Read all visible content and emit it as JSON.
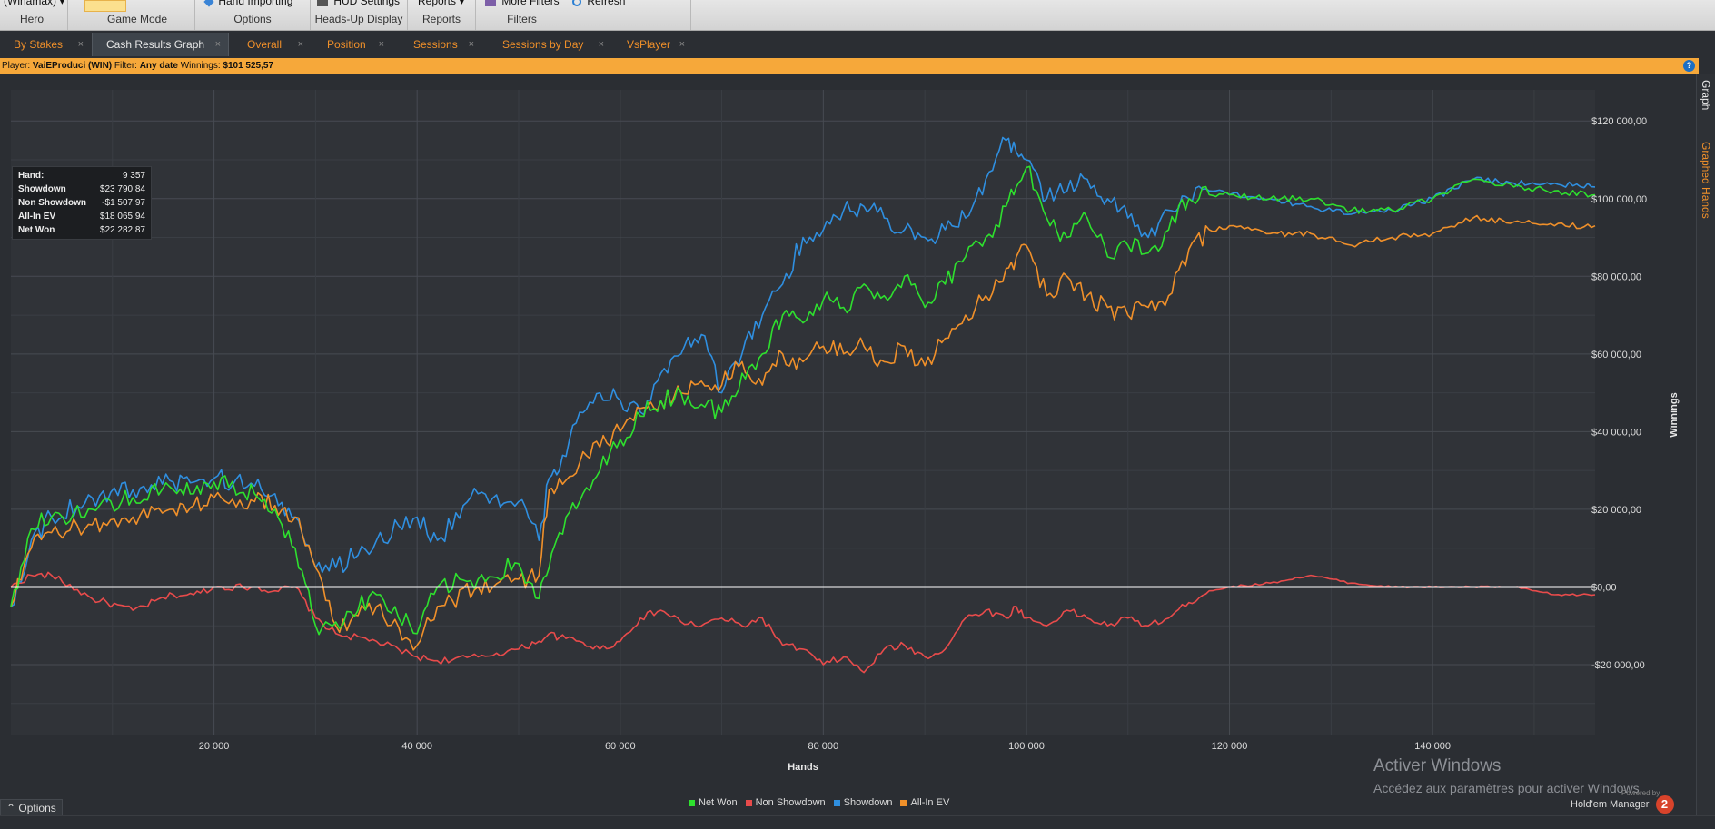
{
  "ribbon": {
    "groups": [
      {
        "button": "(Winamax) ▾",
        "label": "Hero"
      },
      {
        "button": "",
        "label": "Game Mode"
      },
      {
        "button": "Hand Importing",
        "label": "Options"
      },
      {
        "button": "HUD Settings",
        "label": "Heads-Up Display"
      },
      {
        "button": "Reports ▾",
        "label": "Reports"
      },
      {
        "button": "More Filters",
        "label": ""
      },
      {
        "button": "Refresh",
        "label": "Filters"
      }
    ]
  },
  "tabs": [
    {
      "label": "By Stakes",
      "close": "×"
    },
    {
      "label": "Cash Results Graph",
      "close": "×"
    },
    {
      "label": "Overall",
      "close": "×"
    },
    {
      "label": "Position",
      "close": "×"
    },
    {
      "label": "Sessions",
      "close": "×"
    },
    {
      "label": "Sessions by Day",
      "close": "×"
    },
    {
      "label": "VsPlayer",
      "close": "×"
    }
  ],
  "filterbar": {
    "player_label": "Player:",
    "player": "VaiEProduci (WIN)",
    "filter_label": "Filter:",
    "filter": "Any date",
    "winnings_label": "Winnings:",
    "winnings": "$101 525,57",
    "help": "?"
  },
  "side_tabs": {
    "graph": "Graph",
    "graphed_hands": "Graphed Hands"
  },
  "stats": [
    {
      "key": "Hand:",
      "value": "9 357"
    },
    {
      "key": "Showdown",
      "value": "$23 790,84"
    },
    {
      "key": "Non Showdown",
      "value": "-$1 507,97"
    },
    {
      "key": "All-In EV",
      "value": "$18 065,94"
    },
    {
      "key": "Net Won",
      "value": "$22 282,87"
    }
  ],
  "bottom": {
    "options": "⌃ Options",
    "watermark_title": "Activer Windows",
    "watermark_sub": "Accédez aux paramètres pour activer Windows.",
    "powered_by": "Powered by",
    "brand": "Hold'em Manager",
    "brand_badge": "2"
  },
  "chart_data": {
    "type": "line",
    "xlabel": "Hands",
    "ylabel": "Winnings",
    "xlim": [
      0,
      156000
    ],
    "ylim": [
      -38000,
      128000
    ],
    "x_ticks": [
      20000,
      40000,
      60000,
      80000,
      100000,
      120000,
      140000
    ],
    "x_tick_labels": [
      "20 000",
      "40 000",
      "60 000",
      "80 000",
      "100 000",
      "120 000",
      "140 000"
    ],
    "y_ticks": [
      120000,
      100000,
      80000,
      60000,
      40000,
      20000,
      0,
      -20000
    ],
    "y_tick_labels": [
      "$120 000,00",
      "$100 000,00",
      "$80 000,00",
      "$60 000,00",
      "$40 000,00",
      "$20 000,00",
      "$0,00",
      "-$20 000,00"
    ],
    "grid": true,
    "legend": "bottom-center",
    "colors": {
      "net_won": "#2ee02e",
      "non_showdown": "#e84b4b",
      "showdown": "#2f8fe0",
      "all_in_ev": "#f0902a"
    },
    "x": [
      0,
      2000,
      4000,
      8000,
      12000,
      16000,
      18000,
      20000,
      24000,
      26000,
      28000,
      30000,
      32000,
      36000,
      40000,
      42000,
      46000,
      50000,
      52000,
      53000,
      54000,
      56000,
      58000,
      60000,
      62000,
      64000,
      66000,
      68000,
      70000,
      72000,
      74000,
      76000,
      78000,
      80000,
      82000,
      84000,
      86000,
      88000,
      90000,
      92000,
      94000,
      96000,
      98000,
      99000,
      100000,
      102000,
      104000,
      106000,
      108000,
      110000,
      112000,
      114000,
      116000,
      118000,
      120000,
      124000,
      128000,
      132000,
      136000,
      140000,
      144000,
      148000,
      152000,
      156000
    ],
    "series": [
      {
        "name": "Net Won",
        "key": "net_won",
        "values": [
          -5000,
          15000,
          18000,
          20000,
          23000,
          25000,
          24000,
          27000,
          24000,
          20000,
          10000,
          -10000,
          -9000,
          -2000,
          -12000,
          0,
          2000,
          6000,
          -3000,
          5000,
          14000,
          22000,
          30000,
          38000,
          44000,
          48000,
          50000,
          47000,
          45000,
          55000,
          60000,
          70000,
          68000,
          74000,
          72000,
          78000,
          75000,
          80000,
          72000,
          78000,
          85000,
          90000,
          98000,
          103000,
          108000,
          95000,
          90000,
          95000,
          85000,
          88000,
          86000,
          92000,
          100000,
          101000,
          101000,
          100000,
          100000,
          97000,
          97000,
          100000,
          105000,
          103000,
          102000,
          101000
        ]
      },
      {
        "name": "Non Showdown",
        "key": "non_showdown",
        "values": [
          0,
          3000,
          3000,
          -3000,
          -6000,
          -2000,
          -2000,
          0,
          0,
          -1000,
          0,
          -8000,
          -12000,
          -14000,
          -18000,
          -19000,
          -18000,
          -16000,
          -14000,
          -12000,
          -13000,
          -14000,
          -16000,
          -14000,
          -8000,
          -6000,
          -9000,
          -10000,
          -8000,
          -10000,
          -8000,
          -15000,
          -16000,
          -20000,
          -18000,
          -22000,
          -16000,
          -15000,
          -18000,
          -16000,
          -8000,
          -6000,
          -8000,
          -5000,
          -8000,
          -10000,
          -6000,
          -8000,
          -10000,
          -8000,
          -10000,
          -8000,
          -4000,
          -1000,
          0,
          1000,
          3000,
          1000,
          0,
          0,
          0,
          0,
          -2000,
          -2000
        ]
      },
      {
        "name": "Showdown",
        "key": "showdown",
        "values": [
          -5000,
          12000,
          18000,
          23000,
          25000,
          27000,
          27000,
          28000,
          26000,
          24000,
          18000,
          5000,
          5000,
          12000,
          18000,
          12000,
          24000,
          22000,
          12000,
          28000,
          30000,
          45000,
          50000,
          48000,
          45000,
          55000,
          60000,
          65000,
          50000,
          60000,
          70000,
          78000,
          90000,
          92000,
          97000,
          98000,
          95000,
          92000,
          90000,
          92000,
          95000,
          105000,
          115000,
          112000,
          110000,
          100000,
          102000,
          105000,
          100000,
          95000,
          90000,
          97000,
          100000,
          102000,
          101000,
          100000,
          98000,
          96000,
          97000,
          100000,
          105000,
          104000,
          104000,
          103000
        ]
      },
      {
        "name": "All-In EV",
        "key": "all_in_ev",
        "values": [
          -5000,
          10000,
          14000,
          16000,
          18000,
          20000,
          21000,
          23000,
          22000,
          21000,
          18000,
          5000,
          -10000,
          -5000,
          -15000,
          -5000,
          0,
          2000,
          3000,
          25000,
          28000,
          32000,
          36000,
          40000,
          46000,
          48000,
          50000,
          53000,
          52000,
          58000,
          52000,
          60000,
          58000,
          62000,
          60000,
          62000,
          58000,
          62000,
          57000,
          64000,
          70000,
          75000,
          82000,
          85000,
          88000,
          75000,
          80000,
          75000,
          72000,
          70000,
          72000,
          75000,
          87000,
          92000,
          93000,
          91000,
          91000,
          88000,
          90000,
          91000,
          95000,
          94000,
          93000,
          93000
        ]
      }
    ]
  }
}
